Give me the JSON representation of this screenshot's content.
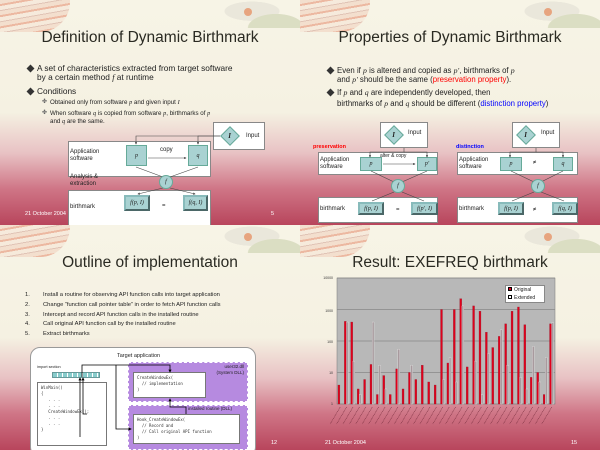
{
  "footer_date": "21 October 2004",
  "slides": [
    {
      "title": "Definition of Dynamic Birthmark",
      "page": "5",
      "bullets": [
        {
          "text_a": "A set of characteristics extracted from target software",
          "text_b": "by a certain method ",
          "var": "f",
          "text_c": " at runtime"
        },
        {
          "text": "Conditions"
        }
      ],
      "sub_bullets": [
        {
          "a": "Obtained only from software ",
          "v1": "p",
          "b": " and given input ",
          "v2": "I"
        },
        {
          "a": "When software ",
          "v1": "q",
          "b": " is copied from software ",
          "v2": "p",
          "c": ", birthmarks of ",
          "v3": "p",
          "d": "and ",
          "v4": "q",
          "e": " are the same."
        }
      ],
      "diagram": {
        "input_symbol": "I",
        "input_label": "Input",
        "app_label": "Application software",
        "p": "p",
        "q": "q",
        "copy_label": "copy",
        "f": "f",
        "analysis_label": "Analysis & extraction",
        "birthmark_label": "birthmark",
        "fp": "f(p, I)",
        "eq": "=",
        "fq": "f(q, I)"
      }
    },
    {
      "title": "Properties of Dynamic Birthmark",
      "bullets": [
        {
          "a": "Even if ",
          "v1": "p",
          "b": " is altered and copied as ",
          "v2": "p'",
          "c": ", birthmarks of ",
          "v3": "p",
          "d": "and ",
          "v4": "p'",
          "e": " should be the same (",
          "hl": "preservation property",
          "f": ")."
        },
        {
          "a": "If ",
          "v1": "p",
          "b": " and ",
          "v2": "q",
          "c": " are independently developed, then",
          "d": "birthmarks of ",
          "v3": "p",
          "e": " and ",
          "v4": "q",
          "f": " should be different (",
          "hl": "distinction property",
          "g": ")"
        }
      ],
      "preservation": {
        "tag": "preservation",
        "input_symbol": "I",
        "input_label": "Input",
        "app_label": "Application software",
        "p": "p",
        "p2": "p'",
        "arrow_label": "alter & copy",
        "f": "f",
        "birthmark_label": "birthmark",
        "fp": "f(p, I)",
        "rel": "=",
        "fp2": "f(p', I)"
      },
      "distinction": {
        "tag": "distinction",
        "input_symbol": "I",
        "input_label": "Input",
        "app_label": "Application software",
        "p": "p",
        "q": "q",
        "neq": "≠",
        "f": "f",
        "birthmark_label": "birthmark",
        "fp": "f(p, I)",
        "rel": "≠",
        "fq": "f(q, I)"
      },
      "colors": {
        "preservation": "#ff0000",
        "distinction": "#0000ff"
      }
    },
    {
      "title": "Outline of implementation",
      "page": "12",
      "steps": [
        {
          "n": "1.",
          "text": "Install a routine for observing API function calls into target application"
        },
        {
          "n": "2.",
          "text": "Change “function call pointer table” in order to fetch API function calls"
        },
        {
          "n": "3.",
          "text": "Intercept and record API function calls in the installed routine"
        },
        {
          "n": "4.",
          "text": "Call original API function call by the installed routine"
        },
        {
          "n": "5.",
          "text": "Extract birthmarks"
        }
      ],
      "diagram": {
        "target_label": "Target application",
        "import_label": "import section",
        "winmain_code": "WinMain()\n{\n   . . .\n   . . .\n   CreateWindowEx();\n   . . .\n   . . .\n}",
        "dll_label": "user32.dll\n(System DLL)",
        "dll_code": "CreateWindowEx(\n  // implementation\n)",
        "routine_label": "installed routine (DLL)",
        "routine_code": "Hook_CreateWindowEx(\n  // Record and\n  // Call original API function\n)"
      }
    },
    {
      "title": "Result: EXEFREQ birthmark",
      "page": "15",
      "chart_data": {
        "type": "bar",
        "scale": "log",
        "ylim": [
          1,
          10000
        ],
        "yticks": [
          "10000",
          "1000",
          "100",
          "10",
          "1"
        ],
        "grid": true,
        "legend_placement": "top-right",
        "series": [
          {
            "name": "Original",
            "color": "#e0001b",
            "values": [
              4,
              420,
              400,
              3,
              6,
              18,
              2,
              8,
              2,
              13,
              3,
              10,
              6,
              17,
              5,
              4,
              1000,
              20,
              1000,
              2200,
              15,
              1300,
              880,
              190,
              62,
              140,
              350,
              880,
              1200,
              330,
              7,
              10,
              2,
              350
            ]
          },
          {
            "name": "Extended",
            "color": "#d8d8d8",
            "values": [
              1,
              400,
              23,
              2,
              1,
              400,
              17,
              3,
              1,
              55,
              1,
              17,
              1,
              1,
              1,
              1,
              6,
              30,
              5,
              1300,
              1,
              23,
              2,
              40,
              1,
              230,
              17,
              1,
              7,
              3,
              67,
              5,
              30,
              380
            ]
          }
        ]
      }
    }
  ]
}
